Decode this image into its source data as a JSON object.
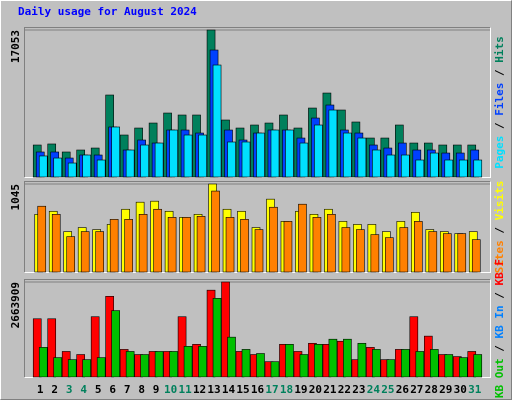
{
  "title": "Daily usage for August 2024",
  "legend_separator": " / ",
  "chart_data": [
    {
      "type": "bar",
      "ylim": [
        0,
        17053
      ],
      "yticks": [
        17053
      ],
      "series": [
        {
          "name": "Hits",
          "color": "#00805c",
          "values": [
            3710,
            3830,
            2900,
            3130,
            3360,
            9510,
            4870,
            5680,
            6260,
            7420,
            7190,
            7190,
            17053,
            6610,
            5680,
            6030,
            6260,
            7190,
            5680,
            8000,
            9740,
            7770,
            6380,
            4520,
            4520,
            6030,
            3940,
            3940,
            3710,
            3710,
            3710
          ]
        },
        {
          "name": "Files",
          "color": "#0040ff",
          "values": [
            2900,
            2900,
            2200,
            2550,
            2550,
            5800,
            3130,
            4290,
            3940,
            5450,
            5450,
            5100,
            14730,
            5450,
            4290,
            5100,
            5450,
            5450,
            4520,
            6840,
            8350,
            5450,
            5100,
            3710,
            3360,
            3940,
            3130,
            3130,
            2780,
            2780,
            3130
          ]
        },
        {
          "name": "Pages",
          "color": "#00e0ff",
          "values": [
            2440,
            2200,
            1620,
            2550,
            1970,
            5800,
            3130,
            3710,
            3940,
            5450,
            4870,
            4870,
            12990,
            4060,
            4060,
            5100,
            5450,
            5450,
            3940,
            6030,
            7770,
            5100,
            4520,
            3130,
            2550,
            2550,
            1970,
            2780,
            1970,
            1970,
            1970
          ]
        }
      ]
    },
    {
      "type": "bar",
      "ylim": [
        0,
        1045
      ],
      "yticks": [
        1045
      ],
      "series": [
        {
          "name": "Visits",
          "color": "#ffff00",
          "values": [
            685,
            721,
            480,
            528,
            504,
            565,
            745,
            829,
            841,
            721,
            649,
            685,
            1045,
            745,
            721,
            528,
            865,
            601,
            721,
            685,
            745,
            601,
            565,
            565,
            480,
            601,
            709,
            504,
            480,
            456,
            480
          ]
        },
        {
          "name": "Sites",
          "color": "#ff8000",
          "values": [
            781,
            685,
            420,
            480,
            480,
            625,
            625,
            685,
            745,
            649,
            649,
            661,
            961,
            649,
            625,
            504,
            769,
            601,
            805,
            649,
            685,
            528,
            504,
            444,
            408,
            528,
            601,
            480,
            456,
            456,
            384
          ]
        }
      ]
    },
    {
      "type": "bar",
      "ylim": [
        0,
        2663909
      ],
      "yticks": [
        2663909
      ],
      "categories": [
        "1",
        "2",
        "3",
        "4",
        "5",
        "6",
        "7",
        "8",
        "9",
        "10",
        "11",
        "12",
        "13",
        "14",
        "15",
        "16",
        "17",
        "18",
        "19",
        "20",
        "21",
        "22",
        "23",
        "24",
        "25",
        "26",
        "27",
        "28",
        "29",
        "30",
        "31"
      ],
      "category_colors": [
        "#000000",
        "#000000",
        "#00805c",
        "#00805c",
        "#000000",
        "#000000",
        "#000000",
        "#000000",
        "#000000",
        "#00805c",
        "#00805c",
        "#000000",
        "#000000",
        "#000000",
        "#000000",
        "#000000",
        "#00805c",
        "#00805c",
        "#000000",
        "#000000",
        "#000000",
        "#000000",
        "#000000",
        "#00805c",
        "#00805c",
        "#000000",
        "#000000",
        "#000000",
        "#000000",
        "#000000",
        "#00805c"
      ],
      "series": [
        {
          "name": "KB F",
          "color": "#ff0000",
          "values": [
            1632700,
            1632700,
            716100,
            630200,
            1690000,
            2262900,
            773400,
            630200,
            716100,
            716100,
            1690000,
            916600,
            2434700,
            2663909,
            716100,
            630200,
            429700,
            916600,
            716100,
            945300,
            916600,
            1002500,
            486900,
            830700,
            486900,
            773400,
            1690000,
            1145800,
            630200,
            572900,
            716100
          ]
        },
        {
          "name": "KB In",
          "color": "#0080ff",
          "values": [
            0,
            0,
            0,
            0,
            0,
            0,
            0,
            0,
            0,
            0,
            0,
            0,
            0,
            0,
            0,
            0,
            0,
            0,
            0,
            0,
            0,
            0,
            0,
            0,
            0,
            0,
            0,
            0,
            0,
            0,
            0
          ]
        },
        {
          "name": "KB Out",
          "color": "#00c000",
          "values": [
            830700,
            544200,
            486900,
            486900,
            544200,
            1861900,
            716100,
            630200,
            716100,
            716100,
            859300,
            859300,
            2205600,
            1117100,
            773400,
            658800,
            429700,
            916600,
            630200,
            916600,
            1059800,
            1059800,
            945300,
            773400,
            486900,
            773400,
            716100,
            773400,
            630200,
            544200,
            630200
          ]
        }
      ]
    }
  ]
}
